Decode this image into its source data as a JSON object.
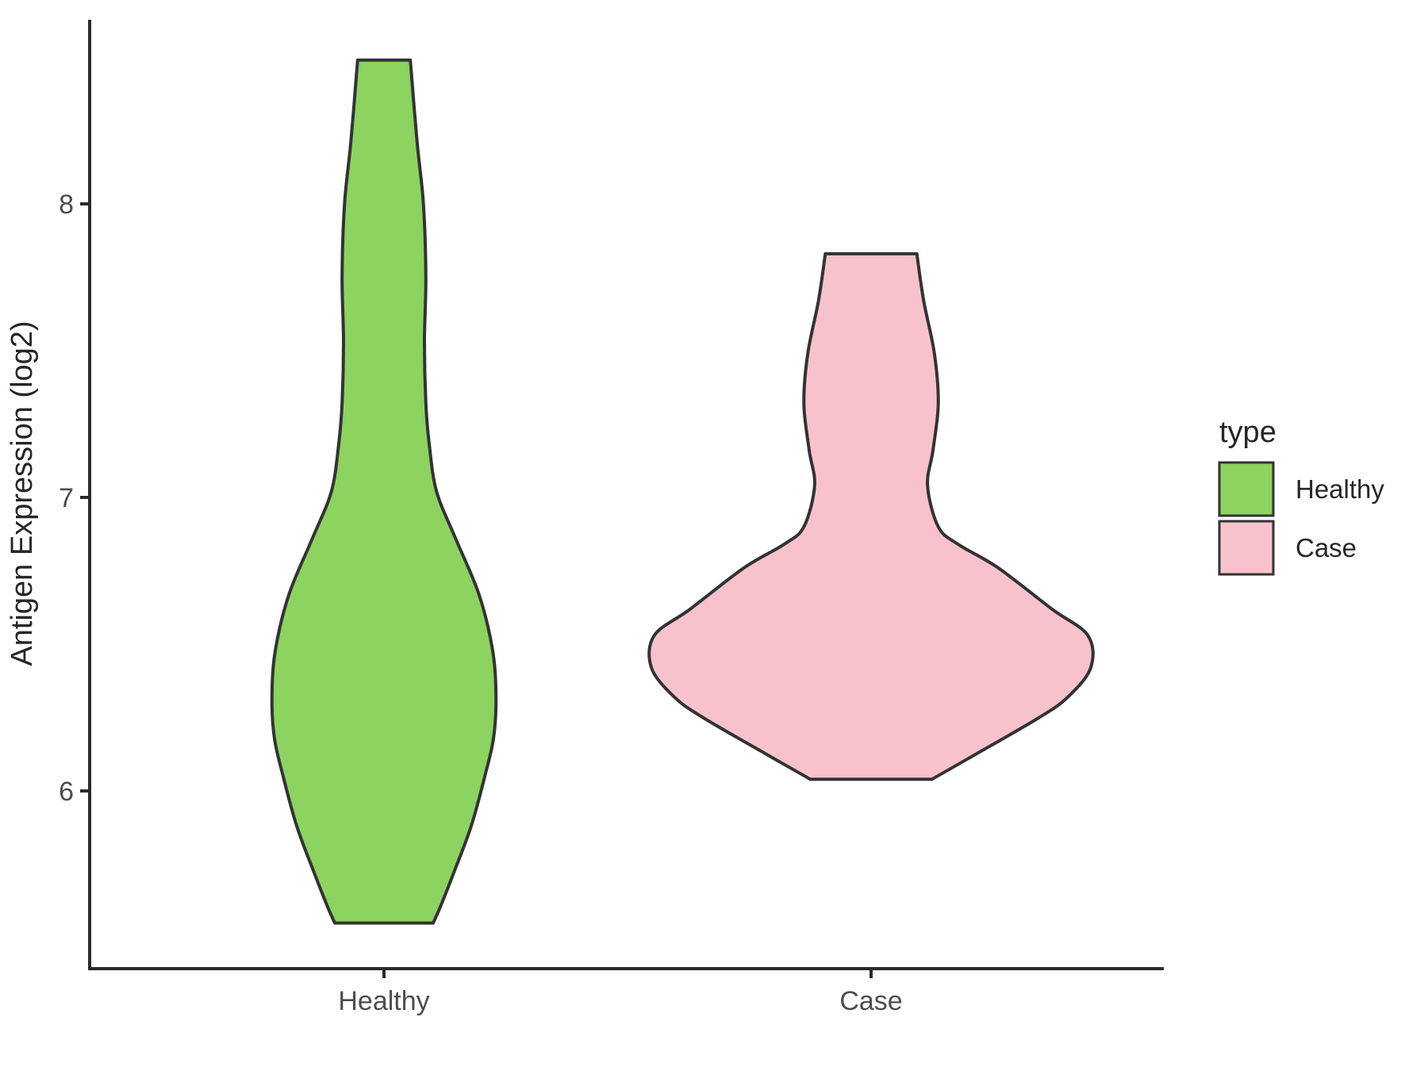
{
  "figure": {
    "y_axis_title": "Antigen Expression (log2)",
    "legend": {
      "title": "type",
      "items": [
        {
          "label": "Healthy",
          "color": "#8cd35f"
        },
        {
          "label": "Case",
          "color": "#f8c2cd"
        }
      ]
    }
  },
  "chart_data": {
    "type": "violin",
    "title": "",
    "xlabel": "",
    "ylabel": "Antigen Expression (log2)",
    "categories": [
      "Healthy",
      "Case"
    ],
    "y_ticks": [
      8,
      7,
      6
    ],
    "ylim": [
      5.4,
      8.65
    ],
    "grid": false,
    "legend_position": "right",
    "outline_color": "#333333",
    "axis_color": "#2b2b2b",
    "tick_label_color": "#4d4d4d",
    "series": [
      {
        "name": "Healthy",
        "fill": "#8cd35f",
        "value_range": [
          5.55,
          8.49
        ],
        "profile": [
          [
            8.49,
            0.054
          ],
          [
            8.21,
            0.068
          ],
          [
            8.0,
            0.081
          ],
          [
            7.75,
            0.086
          ],
          [
            7.53,
            0.083
          ],
          [
            7.32,
            0.086
          ],
          [
            7.18,
            0.093
          ],
          [
            7.02,
            0.108
          ],
          [
            6.86,
            0.147
          ],
          [
            6.67,
            0.195
          ],
          [
            6.48,
            0.223
          ],
          [
            6.32,
            0.23
          ],
          [
            6.18,
            0.225
          ],
          [
            6.05,
            0.207
          ],
          [
            5.88,
            0.179
          ],
          [
            5.72,
            0.143
          ],
          [
            5.61,
            0.117
          ],
          [
            5.55,
            0.101
          ]
        ]
      },
      {
        "name": "Case",
        "fill": "#f8c2cd",
        "value_range": [
          6.04,
          7.83
        ],
        "profile": [
          [
            7.83,
            0.094
          ],
          [
            7.67,
            0.108
          ],
          [
            7.49,
            0.13
          ],
          [
            7.32,
            0.138
          ],
          [
            7.16,
            0.127
          ],
          [
            7.04,
            0.116
          ],
          [
            6.9,
            0.138
          ],
          [
            6.84,
            0.179
          ],
          [
            6.76,
            0.261
          ],
          [
            6.62,
            0.371
          ],
          [
            6.53,
            0.445
          ],
          [
            6.42,
            0.451
          ],
          [
            6.32,
            0.404
          ],
          [
            6.25,
            0.345
          ],
          [
            6.13,
            0.22
          ],
          [
            6.04,
            0.125
          ]
        ]
      }
    ]
  }
}
